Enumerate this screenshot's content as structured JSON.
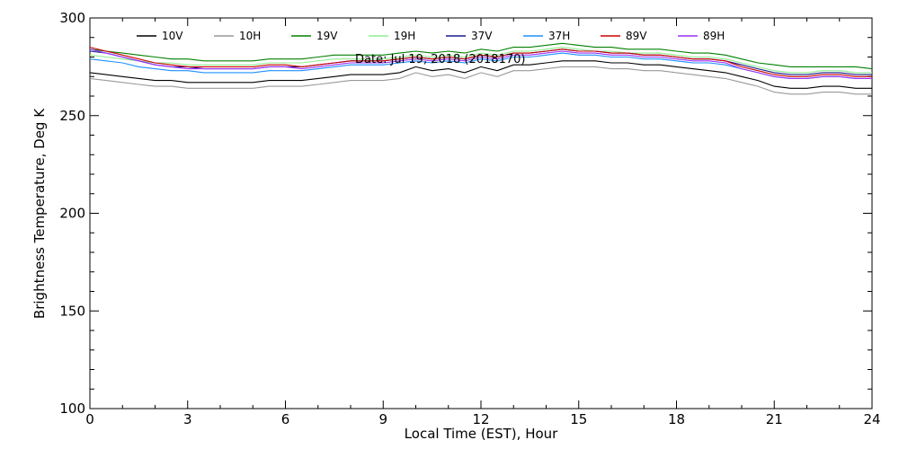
{
  "chart_data": {
    "type": "line",
    "title": "",
    "annotation": "Date: Jul 19, 2018 (2018170)",
    "xlabel": "Local Time (EST), Hour",
    "ylabel": "Brightness Temperature, Deg K",
    "xlim": [
      0,
      24
    ],
    "ylim": [
      100,
      300
    ],
    "xticks": [
      0,
      3,
      6,
      9,
      12,
      15,
      18,
      21,
      24
    ],
    "yticks": [
      100,
      150,
      200,
      250,
      300
    ],
    "grid": false,
    "legend_position": "top",
    "x": [
      0,
      0.5,
      1,
      1.5,
      2,
      2.5,
      3,
      3.5,
      4,
      4.5,
      5,
      5.5,
      6,
      6.5,
      7,
      7.5,
      8,
      8.5,
      9,
      9.5,
      10,
      10.5,
      11,
      11.5,
      12,
      12.5,
      13,
      13.5,
      14,
      14.5,
      15,
      15.5,
      16,
      16.5,
      17,
      17.5,
      18,
      18.5,
      19,
      19.5,
      20,
      20.5,
      21,
      21.5,
      22,
      22.5,
      23,
      23.5,
      24
    ],
    "series": [
      {
        "name": "10V",
        "color": "#000000",
        "values": [
          272,
          271,
          270,
          269,
          268,
          268,
          267,
          267,
          267,
          267,
          267,
          268,
          268,
          268,
          269,
          270,
          271,
          271,
          271,
          272,
          275,
          273,
          274,
          272,
          275,
          273,
          276,
          276,
          277,
          278,
          278,
          278,
          277,
          277,
          276,
          276,
          275,
          274,
          273,
          272,
          270,
          268,
          265,
          264,
          264,
          265,
          265,
          264,
          264
        ]
      },
      {
        "name": "10H",
        "color": "#999999",
        "values": [
          269,
          268,
          267,
          266,
          265,
          265,
          264,
          264,
          264,
          264,
          264,
          265,
          265,
          265,
          266,
          267,
          268,
          268,
          268,
          269,
          272,
          270,
          271,
          269,
          272,
          270,
          273,
          273,
          274,
          275,
          275,
          275,
          274,
          274,
          273,
          273,
          272,
          271,
          270,
          269,
          267,
          265,
          262,
          261,
          261,
          262,
          262,
          261,
          261
        ]
      },
      {
        "name": "19V",
        "color": "#008000",
        "values": [
          284,
          283,
          282,
          281,
          280,
          279,
          279,
          278,
          278,
          278,
          278,
          279,
          279,
          279,
          280,
          281,
          281,
          281,
          281,
          282,
          283,
          282,
          283,
          282,
          284,
          283,
          285,
          285,
          286,
          287,
          286,
          285,
          285,
          284,
          284,
          284,
          283,
          282,
          282,
          281,
          279,
          277,
          276,
          275,
          275,
          275,
          275,
          275,
          274
        ]
      },
      {
        "name": "19H",
        "color": "#90ee90",
        "values": [
          281,
          280,
          279,
          278,
          277,
          277,
          276,
          276,
          276,
          276,
          276,
          277,
          277,
          277,
          278,
          279,
          279,
          279,
          279,
          280,
          281,
          280,
          281,
          280,
          282,
          281,
          283,
          283,
          284,
          285,
          284,
          283,
          283,
          282,
          282,
          282,
          281,
          280,
          280,
          279,
          277,
          275,
          273,
          272,
          272,
          273,
          273,
          272,
          272
        ]
      },
      {
        "name": "37V",
        "color": "#1a1a8c",
        "values": [
          283,
          282,
          280,
          278,
          276,
          275,
          275,
          274,
          274,
          274,
          274,
          275,
          275,
          275,
          276,
          277,
          278,
          278,
          278,
          279,
          280,
          279,
          280,
          279,
          281,
          280,
          282,
          282,
          283,
          284,
          283,
          283,
          282,
          282,
          281,
          281,
          280,
          279,
          279,
          278,
          276,
          274,
          272,
          271,
          271,
          272,
          272,
          271,
          271
        ]
      },
      {
        "name": "37H",
        "color": "#1e90ff",
        "values": [
          279,
          278,
          277,
          275,
          274,
          273,
          273,
          272,
          272,
          272,
          272,
          273,
          273,
          273,
          274,
          275,
          276,
          276,
          276,
          277,
          278,
          277,
          278,
          277,
          279,
          278,
          280,
          280,
          281,
          282,
          281,
          281,
          280,
          280,
          279,
          279,
          278,
          277,
          277,
          276,
          274,
          272,
          270,
          269,
          269,
          270,
          270,
          269,
          269
        ]
      },
      {
        "name": "89V",
        "color": "#cc0000",
        "values": [
          285,
          283,
          281,
          279,
          277,
          276,
          275,
          275,
          275,
          275,
          275,
          276,
          276,
          275,
          276,
          277,
          278,
          278,
          278,
          279,
          280,
          279,
          280,
          279,
          281,
          280,
          282,
          282,
          283,
          284,
          283,
          283,
          282,
          282,
          281,
          281,
          280,
          279,
          279,
          278,
          275,
          273,
          271,
          270,
          270,
          271,
          271,
          270,
          270
        ]
      },
      {
        "name": "89H",
        "color": "#9b30ff",
        "values": [
          284,
          282,
          280,
          278,
          276,
          275,
          274,
          274,
          274,
          274,
          274,
          275,
          275,
          274,
          275,
          276,
          277,
          277,
          277,
          278,
          279,
          278,
          279,
          278,
          280,
          279,
          281,
          281,
          282,
          283,
          282,
          282,
          281,
          281,
          280,
          280,
          279,
          278,
          278,
          277,
          274,
          272,
          270,
          269,
          269,
          270,
          270,
          269,
          269
        ]
      }
    ]
  }
}
